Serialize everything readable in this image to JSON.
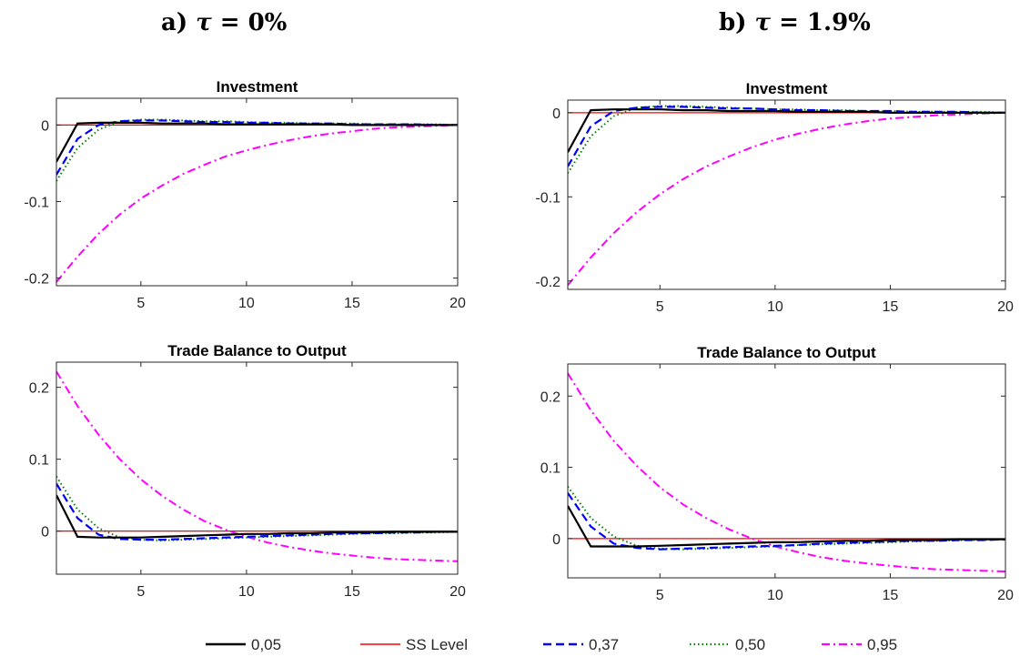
{
  "columns": [
    {
      "label": "a) ",
      "symbol": "τ",
      "value": " = 0%"
    },
    {
      "label": "b) ",
      "symbol": "τ",
      "value": " = 1.9%"
    }
  ],
  "legend": [
    {
      "label": "0,05",
      "color": "#000000",
      "style": "solid"
    },
    {
      "label": "SS Level",
      "color": "#ff0000",
      "style": "solid"
    },
    {
      "label": "0,37",
      "color": "#0000ff",
      "style": "dashed"
    },
    {
      "label": "0,50",
      "color": "#008000",
      "style": "dotted"
    },
    {
      "label": "0,95",
      "color": "#ff00ff",
      "style": "dashdot"
    }
  ],
  "chart_data": [
    {
      "type": "line",
      "title": "Investment",
      "panel": "a",
      "x": [
        1,
        2,
        3,
        4,
        5,
        6,
        7,
        8,
        9,
        10,
        11,
        12,
        13,
        14,
        15,
        16,
        17,
        18,
        19,
        20
      ],
      "xlim": [
        1,
        20
      ],
      "ylim": [
        -0.21,
        0.035
      ],
      "xticks": [
        5,
        10,
        15,
        20
      ],
      "yticks": [
        0,
        -0.1,
        -0.2
      ],
      "ytick_labels": [
        "0",
        "-0.1",
        "-0.2"
      ],
      "series": [
        {
          "name": "0,05",
          "values": [
            -0.048,
            0.002,
            0.003,
            0.003,
            0.003,
            0.002,
            0.002,
            0.002,
            0.001,
            0.001,
            0.001,
            0.001,
            0.001,
            0.001,
            0.0,
            0.0,
            0.0,
            0.0,
            0.0,
            0.0
          ]
        },
        {
          "name": "SS Level",
          "values": [
            0,
            0,
            0,
            0,
            0,
            0,
            0,
            0,
            0,
            0,
            0,
            0,
            0,
            0,
            0,
            0,
            0,
            0,
            0,
            0
          ]
        },
        {
          "name": "0,37",
          "values": [
            -0.065,
            -0.018,
            0.0,
            0.005,
            0.006,
            0.006,
            0.005,
            0.004,
            0.004,
            0.003,
            0.003,
            0.002,
            0.002,
            0.002,
            0.001,
            0.001,
            0.001,
            0.001,
            0.0,
            0.0
          ]
        },
        {
          "name": "0,50",
          "values": [
            -0.073,
            -0.03,
            -0.006,
            0.005,
            0.007,
            0.007,
            0.006,
            0.005,
            0.005,
            0.004,
            0.003,
            0.003,
            0.002,
            0.002,
            0.002,
            0.001,
            0.001,
            0.001,
            0.001,
            0.0
          ]
        },
        {
          "name": "0,95",
          "values": [
            -0.205,
            -0.172,
            -0.142,
            -0.117,
            -0.096,
            -0.079,
            -0.064,
            -0.052,
            -0.041,
            -0.033,
            -0.026,
            -0.02,
            -0.015,
            -0.011,
            -0.008,
            -0.005,
            -0.003,
            -0.002,
            -0.001,
            0.0
          ]
        }
      ]
    },
    {
      "type": "line",
      "title": "Investment",
      "panel": "b",
      "x": [
        1,
        2,
        3,
        4,
        5,
        6,
        7,
        8,
        9,
        10,
        11,
        12,
        13,
        14,
        15,
        16,
        17,
        18,
        19,
        20
      ],
      "xlim": [
        1,
        20
      ],
      "ylim": [
        -0.21,
        0.015
      ],
      "xticks": [
        5,
        10,
        15,
        20
      ],
      "yticks": [
        0,
        -0.1,
        -0.2
      ],
      "ytick_labels": [
        "0",
        "-0.1",
        "-0.2"
      ],
      "series": [
        {
          "name": "0,05",
          "values": [
            -0.047,
            0.003,
            0.004,
            0.004,
            0.004,
            0.003,
            0.003,
            0.002,
            0.002,
            0.002,
            0.001,
            0.001,
            0.001,
            0.001,
            0.0,
            0.0,
            0.0,
            0.0,
            0.0,
            0.0
          ]
        },
        {
          "name": "SS Level",
          "values": [
            0,
            0,
            0,
            0,
            0,
            0,
            0,
            0,
            0,
            0,
            0,
            0,
            0,
            0,
            0,
            0,
            0,
            0,
            0,
            0
          ]
        },
        {
          "name": "0,37",
          "values": [
            -0.064,
            -0.016,
            0.002,
            0.006,
            0.007,
            0.007,
            0.006,
            0.005,
            0.005,
            0.004,
            0.003,
            0.003,
            0.002,
            0.002,
            0.002,
            0.001,
            0.001,
            0.001,
            0.0,
            0.0
          ]
        },
        {
          "name": "0,50",
          "values": [
            -0.072,
            -0.028,
            -0.004,
            0.006,
            0.008,
            0.008,
            0.007,
            0.006,
            0.005,
            0.004,
            0.004,
            0.003,
            0.003,
            0.002,
            0.002,
            0.001,
            0.001,
            0.001,
            0.001,
            0.0
          ]
        },
        {
          "name": "0,95",
          "values": [
            -0.205,
            -0.172,
            -0.143,
            -0.118,
            -0.097,
            -0.079,
            -0.064,
            -0.052,
            -0.041,
            -0.032,
            -0.025,
            -0.019,
            -0.014,
            -0.01,
            -0.007,
            -0.005,
            -0.003,
            -0.002,
            -0.001,
            0.0
          ]
        }
      ]
    },
    {
      "type": "line",
      "title": "Trade Balance to Output",
      "panel": "a",
      "x": [
        1,
        2,
        3,
        4,
        5,
        6,
        7,
        8,
        9,
        10,
        11,
        12,
        13,
        14,
        15,
        16,
        17,
        18,
        19,
        20
      ],
      "xlim": [
        1,
        20
      ],
      "ylim": [
        -0.06,
        0.235
      ],
      "xticks": [
        5,
        10,
        15,
        20
      ],
      "yticks": [
        0,
        0.1,
        0.2
      ],
      "ytick_labels": [
        "0",
        "0.1",
        "0.2"
      ],
      "series": [
        {
          "name": "0,05",
          "values": [
            0.05,
            -0.008,
            -0.009,
            -0.009,
            -0.009,
            -0.008,
            -0.007,
            -0.006,
            -0.005,
            -0.004,
            -0.004,
            -0.003,
            -0.003,
            -0.002,
            -0.002,
            -0.002,
            -0.001,
            -0.001,
            -0.001,
            -0.001
          ]
        },
        {
          "name": "SS Level",
          "values": [
            0,
            0,
            0,
            0,
            0,
            0,
            0,
            0,
            0,
            0,
            0,
            0,
            0,
            0,
            0,
            0,
            0,
            0,
            0,
            0
          ]
        },
        {
          "name": "0,37",
          "values": [
            0.066,
            0.018,
            -0.005,
            -0.011,
            -0.012,
            -0.012,
            -0.011,
            -0.01,
            -0.009,
            -0.008,
            -0.007,
            -0.006,
            -0.005,
            -0.004,
            -0.003,
            -0.003,
            -0.002,
            -0.002,
            -0.001,
            -0.001
          ]
        },
        {
          "name": "0,50",
          "values": [
            0.076,
            0.03,
            0.004,
            -0.009,
            -0.012,
            -0.013,
            -0.012,
            -0.011,
            -0.01,
            -0.009,
            -0.008,
            -0.007,
            -0.006,
            -0.005,
            -0.004,
            -0.003,
            -0.003,
            -0.002,
            -0.002,
            -0.001
          ]
        },
        {
          "name": "0,95",
          "values": [
            0.222,
            0.174,
            0.134,
            0.1,
            0.072,
            0.049,
            0.03,
            0.014,
            0.002,
            -0.008,
            -0.016,
            -0.022,
            -0.027,
            -0.031,
            -0.034,
            -0.037,
            -0.039,
            -0.04,
            -0.041,
            -0.042
          ]
        }
      ]
    },
    {
      "type": "line",
      "title": "Trade Balance to Output",
      "panel": "b",
      "x": [
        1,
        2,
        3,
        4,
        5,
        6,
        7,
        8,
        9,
        10,
        11,
        12,
        13,
        14,
        15,
        16,
        17,
        18,
        19,
        20
      ],
      "xlim": [
        1,
        20
      ],
      "ylim": [
        -0.055,
        0.245
      ],
      "xticks": [
        5,
        10,
        15,
        20
      ],
      "yticks": [
        0,
        0.1,
        0.2
      ],
      "ytick_labels": [
        "0",
        "0.1",
        "0.2"
      ],
      "series": [
        {
          "name": "0,05",
          "values": [
            0.046,
            -0.011,
            -0.011,
            -0.011,
            -0.01,
            -0.009,
            -0.008,
            -0.007,
            -0.006,
            -0.005,
            -0.005,
            -0.004,
            -0.003,
            -0.003,
            -0.002,
            -0.002,
            -0.002,
            -0.001,
            -0.001,
            -0.001
          ]
        },
        {
          "name": "SS Level",
          "values": [
            0,
            0,
            0,
            0,
            0,
            0,
            0,
            0,
            0,
            0,
            0,
            0,
            0,
            0,
            0,
            0,
            0,
            0,
            0,
            0
          ]
        },
        {
          "name": "0,37",
          "values": [
            0.064,
            0.017,
            -0.007,
            -0.013,
            -0.015,
            -0.014,
            -0.013,
            -0.012,
            -0.011,
            -0.01,
            -0.009,
            -0.007,
            -0.006,
            -0.005,
            -0.004,
            -0.003,
            -0.003,
            -0.002,
            -0.002,
            -0.001
          ]
        },
        {
          "name": "0,50",
          "values": [
            0.073,
            0.029,
            0.003,
            -0.01,
            -0.014,
            -0.015,
            -0.014,
            -0.013,
            -0.012,
            -0.011,
            -0.009,
            -0.008,
            -0.007,
            -0.006,
            -0.005,
            -0.004,
            -0.003,
            -0.002,
            -0.002,
            -0.001
          ]
        },
        {
          "name": "0,95",
          "values": [
            0.232,
            0.18,
            0.137,
            0.102,
            0.072,
            0.048,
            0.029,
            0.013,
            0.0,
            -0.011,
            -0.019,
            -0.026,
            -0.031,
            -0.035,
            -0.038,
            -0.041,
            -0.043,
            -0.044,
            -0.045,
            -0.046
          ]
        }
      ]
    }
  ]
}
